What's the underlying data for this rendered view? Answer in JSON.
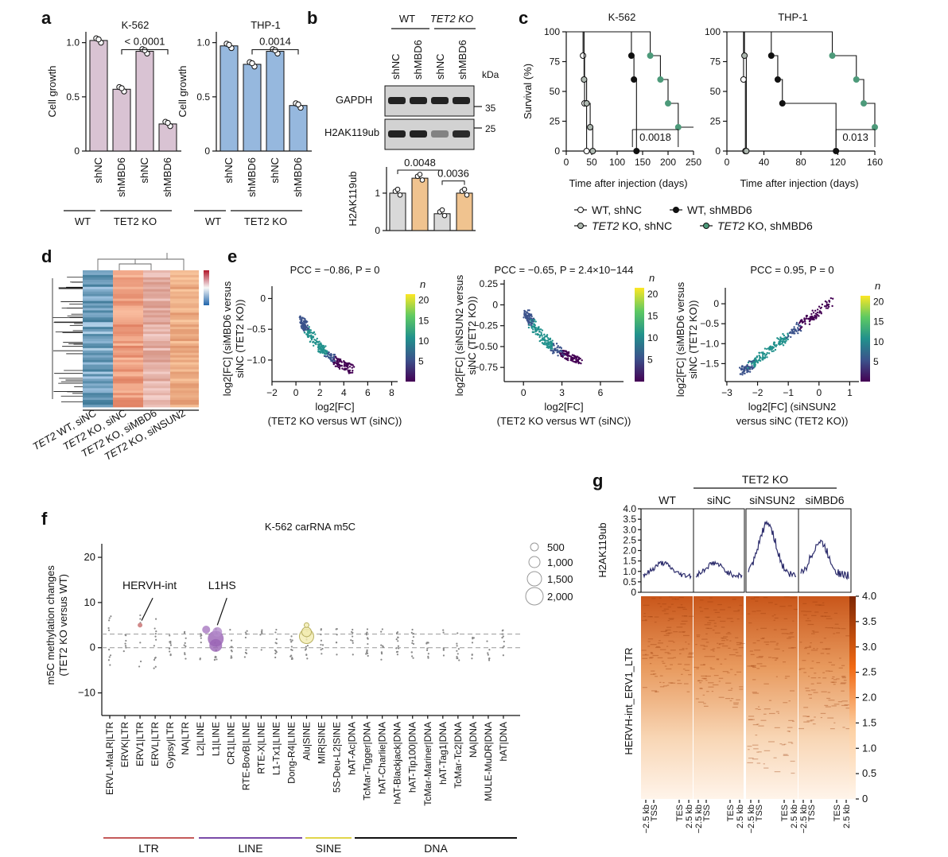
{
  "chart_data": [
    {
      "panel": "a",
      "type": "bar",
      "subplots": [
        {
          "title": "K-562",
          "ylabel": "Cell growth",
          "categories": [
            "shNC",
            "shMBD6",
            "shNC",
            "shMBD6"
          ],
          "groups": [
            "WT",
            "TET2 KO"
          ],
          "values": [
            1.02,
            0.57,
            0.92,
            0.25
          ],
          "ylim": [
            0,
            1.1
          ],
          "yticks": [
            "0",
            "0.5",
            "1.0"
          ],
          "pvalue": "< 0.0001",
          "color": "#d9c3d3"
        },
        {
          "title": "THP-1",
          "ylabel": "Cell growth",
          "categories": [
            "shNC",
            "shMBD6",
            "shNC",
            "shMBD6"
          ],
          "groups": [
            "WT",
            "TET2 KO"
          ],
          "values": [
            0.97,
            0.8,
            0.92,
            0.42
          ],
          "ylim": [
            0,
            1.1
          ],
          "yticks": [
            "0",
            "0.5",
            "1.0"
          ],
          "pvalue": "0.0014",
          "color": "#96b8de"
        }
      ]
    },
    {
      "panel": "b",
      "type": "bar",
      "blot_headers": [
        "WT",
        "TET2 KO"
      ],
      "lanes": [
        "shNC",
        "shMBD6",
        "shNC",
        "shMBD6"
      ],
      "bands": [
        "GAPDH",
        "H2AK119ub"
      ],
      "markers": [
        "35",
        "25"
      ],
      "unit": "kDa",
      "ylabel": "H2AK119ub",
      "values": [
        1.0,
        1.4,
        0.45,
        1.0
      ],
      "yticks": [
        "0",
        "1"
      ],
      "pvalues": [
        "0.0048",
        "0.0036"
      ]
    },
    {
      "panel": "c",
      "type": "line",
      "subplots": [
        {
          "title": "K-562",
          "xlabel": "Time after injection (days)",
          "ylabel": "Survival (%)",
          "xticks": [
            "0",
            "50",
            "100",
            "150",
            "200",
            "250"
          ],
          "yticks": [
            "0",
            "25",
            "50",
            "75",
            "100"
          ],
          "pvalue": "0.0018",
          "series": [
            {
              "name": "WT, shNC",
              "x": [
                0,
                33,
                36,
                40
              ],
              "y": [
                100,
                80,
                40,
                0
              ]
            },
            {
              "name": "TET2 KO, shNC",
              "x": [
                0,
                35,
                40,
                47,
                52
              ],
              "y": [
                100,
                60,
                40,
                20,
                0
              ]
            },
            {
              "name": "WT, shMBD6",
              "x": [
                0,
                128,
                133,
                138
              ],
              "y": [
                100,
                80,
                60,
                0
              ]
            },
            {
              "name": "TET2 KO, shMBD6",
              "x": [
                0,
                165,
                185,
                200,
                220
              ],
              "y": [
                100,
                80,
                60,
                40,
                20
              ]
            }
          ]
        },
        {
          "title": "THP-1",
          "xlabel": "Time after injection (days)",
          "ylabel": "",
          "xticks": [
            "0",
            "40",
            "80",
            "120",
            "160"
          ],
          "yticks": [
            "0",
            "25",
            "50",
            "75",
            "100"
          ],
          "pvalue": "0.013",
          "series": [
            {
              "name": "WT, shNC",
              "x": [
                0,
                18,
                20
              ],
              "y": [
                100,
                60,
                0
              ]
            },
            {
              "name": "TET2 KO, shNC",
              "x": [
                0,
                19,
                21
              ],
              "y": [
                100,
                80,
                0
              ]
            },
            {
              "name": "WT, shMBD6",
              "x": [
                0,
                48,
                55,
                60,
                118
              ],
              "y": [
                100,
                80,
                60,
                40,
                0
              ]
            },
            {
              "name": "TET2 KO, shMBD6",
              "x": [
                0,
                114,
                140,
                148,
                160
              ],
              "y": [
                100,
                80,
                60,
                40,
                20
              ]
            }
          ]
        }
      ],
      "legend": [
        {
          "label": "WT, shNC",
          "color": "#ffffff"
        },
        {
          "label": "WT, shMBD6",
          "color": "#111111"
        },
        {
          "label": "TET2 KO, shNC",
          "color": "#aeb8b0"
        },
        {
          "label": "TET2 KO, shMBD6",
          "color": "#4d9a7a"
        }
      ]
    },
    {
      "panel": "d",
      "type": "heatmap",
      "columns": [
        "TET2 WT, siNC",
        "TET2 KO, siNC",
        "TET2 KO, siMBD6",
        "TET2 KO, siNSUN2"
      ]
    },
    {
      "panel": "e",
      "type": "scatter",
      "subplots": [
        {
          "title": "PCC = −0.86, P = 0",
          "xlabel": "log2[FC]",
          "xlabel2": "(TET2 KO versus WT (siNC))",
          "ylabel": "log2[FC] (siMBD6 versus",
          "ylabel2": "siNC (TET2 KO))",
          "xticks": [
            "−2",
            "0",
            "2",
            "4",
            "6",
            "8"
          ],
          "yticks": [
            "0",
            "−0.5",
            "−1.0"
          ],
          "colorbar": [
            "5",
            "10",
            "15",
            "20"
          ]
        },
        {
          "title": "PCC = −0.65, P = 2.4×10−144",
          "xlabel": "log2[FC]",
          "xlabel2": "(TET2 KO versus WT (siNC))",
          "ylabel": "log2[FC] (siNSUN2 versus",
          "ylabel2": "siNC (TET2 KO))",
          "xticks": [
            "0",
            "3",
            "6"
          ],
          "yticks": [
            "0.25",
            "0",
            "−0.25",
            "−0.50",
            "−0.75"
          ],
          "colorbar": [
            "5",
            "10",
            "15",
            "20"
          ]
        },
        {
          "title": "PCC = 0.95, P = 0",
          "xlabel": "log2[FC] (siNSUN2",
          "xlabel2": "versus siNC (TET2 KO))",
          "ylabel": "log2[FC] (siMBD6 versus",
          "ylabel2": "siNC (TET2 KO))",
          "xticks": [
            "−3",
            "−2",
            "−1",
            "0",
            "1"
          ],
          "yticks": [
            "0",
            "−0.5",
            "−1.0",
            "−1.5"
          ],
          "colorbar": [
            "5",
            "10",
            "15",
            "20"
          ]
        }
      ],
      "colorbar_label": "n"
    },
    {
      "panel": "f",
      "type": "scatter",
      "title": "K-562 carRNA m5C",
      "ylabel": "m5C methylation changes",
      "ylabel2": "(TET2 KO versus WT)",
      "yticks": [
        "20",
        "10",
        "0",
        "−10"
      ],
      "categories": [
        "ERVL-MaLR|LTR",
        "ERVK|LTR",
        "ERV1|LTR",
        "ERVL|LTR",
        "Gypsy|LTR",
        "NA|LTR",
        "L2|LINE",
        "L1|LINE",
        "CR1|LINE",
        "RTE-BovB|LINE",
        "RTE-X|LINE",
        "L1-Tx1|LINE",
        "Dong-R4|LINE",
        "Alu|SINE",
        "MIR|SINE",
        "5S-Deu-L2|SINE",
        "hAT-Ac|DNA",
        "TcMar-Tigger|DNA",
        "hAT-Charlie|DNA",
        "hAT-Blackjack|DNA",
        "hAT-Tip100|DNA",
        "TcMar-Mariner|DNA",
        "hAT-Tag1|DNA",
        "TcMar-Tc2|DNA",
        "NA|DNA",
        "MULE-MuDR|DNA",
        "hAT|DNA"
      ],
      "annotations": [
        "HERVH-int",
        "L1HS"
      ],
      "size_legend": [
        "500",
        "1,000",
        "1,500",
        "2,000"
      ],
      "class_groups": [
        {
          "label": "LTR",
          "color": "#c45a5a"
        },
        {
          "label": "LINE",
          "color": "#7a4aa8"
        },
        {
          "label": "SINE",
          "color": "#e0d64a"
        },
        {
          "label": "DNA",
          "color": "#111111"
        }
      ]
    },
    {
      "panel": "g",
      "type": "heatmap",
      "header": "TET2 KO",
      "columns": [
        "WT",
        "siNC",
        "siNSUN2",
        "siMBD6"
      ],
      "profile_ylabel": "H2AK119ub",
      "profile_yticks": [
        "0",
        "0.5",
        "1.0",
        "1.5",
        "2.0",
        "2.5",
        "3.0",
        "3.5",
        "4.0"
      ],
      "heatmap_ylabel": "HERVH-int_ERV1_LTR",
      "xticks": [
        "−2.5 kb",
        "TSS",
        "TES",
        "2.5 kb"
      ],
      "colorbar": [
        "0",
        "0.5",
        "1.0",
        "1.5",
        "2.0",
        "2.5",
        "3.0",
        "3.5",
        "4.0"
      ]
    }
  ],
  "labels": {
    "a": "a",
    "b": "b",
    "c": "c",
    "d": "d",
    "e": "e",
    "f": "f",
    "g": "g"
  }
}
